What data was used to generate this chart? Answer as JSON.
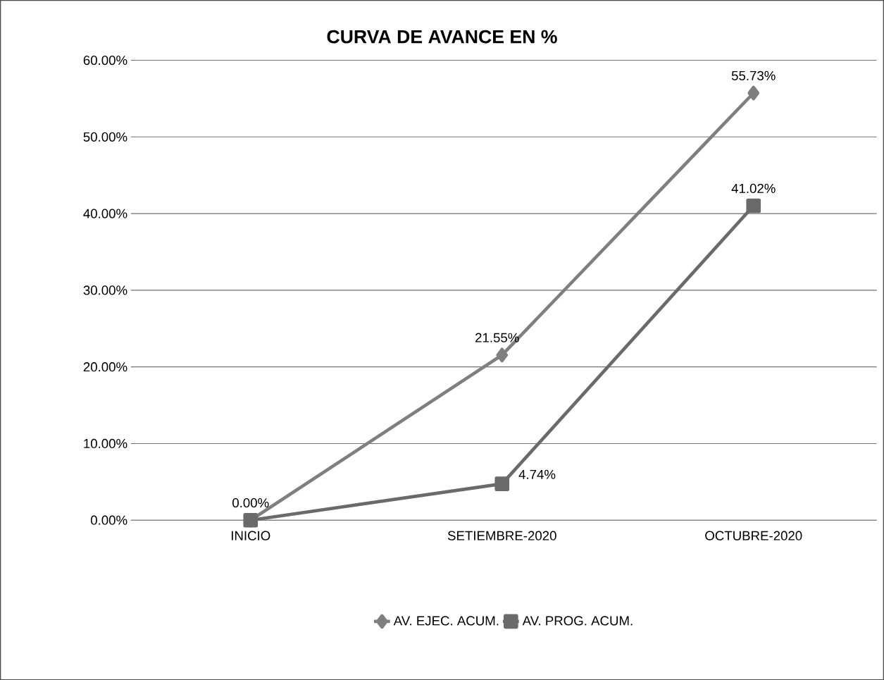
{
  "chart_data": {
    "type": "line",
    "title": "CURVA DE AVANCE EN %",
    "categories": [
      "INICIO",
      "SETIEMBRE-2020",
      "OCTUBRE-2020"
    ],
    "series": [
      {
        "name": "AV. EJEC. ACUM.",
        "color": "#7f7f7f",
        "marker": "diamond",
        "values": [
          0,
          21.55,
          55.73
        ],
        "value_labels": [
          "0.00%",
          "21.55%",
          "55.73%"
        ]
      },
      {
        "name": "AV. PROG. ACUM.",
        "color": "#6a6a6a",
        "marker": "square",
        "values": [
          0,
          4.74,
          41.02
        ],
        "value_labels": [
          null,
          "4.74%",
          "41.02%"
        ]
      }
    ],
    "ylim": [
      0,
      60
    ],
    "yticks": [
      {
        "value": 0,
        "label": "0.00%"
      },
      {
        "value": 10,
        "label": "10.00%"
      },
      {
        "value": 20,
        "label": "20.00%"
      },
      {
        "value": 30,
        "label": "30.00%"
      },
      {
        "value": 40,
        "label": "40.00%"
      },
      {
        "value": 50,
        "label": "50.00%"
      },
      {
        "value": 60,
        "label": "60.00%"
      }
    ],
    "grid": "y",
    "legend": "bottom",
    "line_style": "solid"
  }
}
